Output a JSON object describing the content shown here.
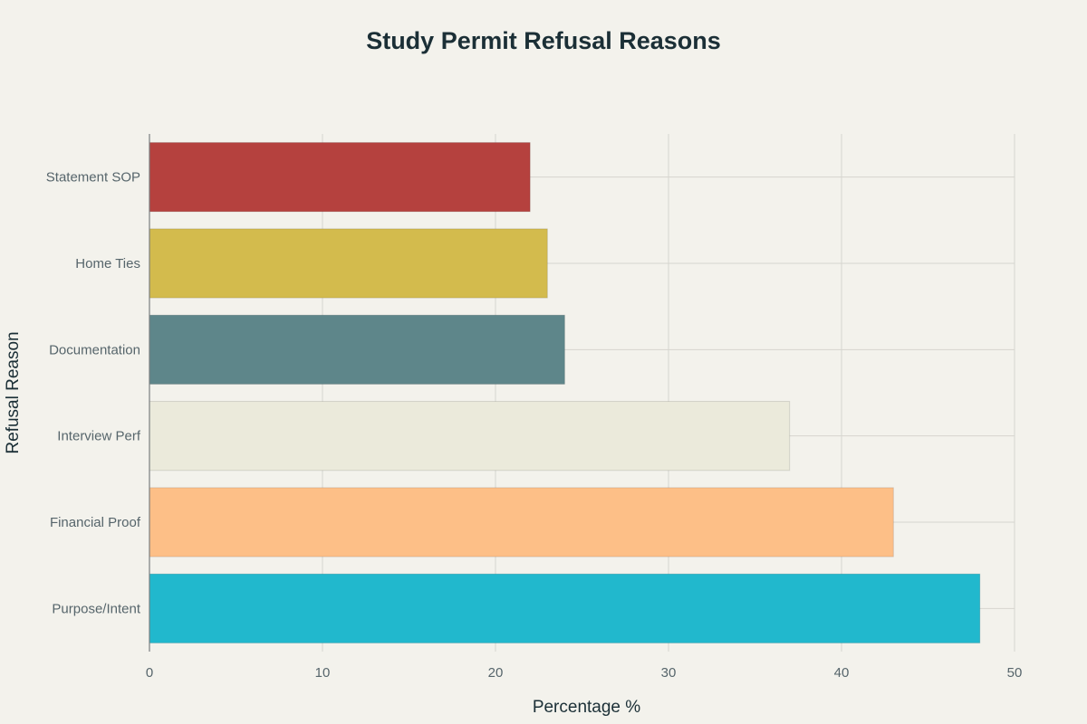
{
  "chart_data": {
    "type": "bar",
    "orientation": "horizontal",
    "title": "Study Permit Refusal Reasons",
    "xlabel": "Percentage %",
    "ylabel": "Refusal Reason",
    "xlim": [
      0,
      50
    ],
    "xticks": [
      0,
      10,
      20,
      30,
      40,
      50
    ],
    "grid": true,
    "categories": [
      "Purpose/Intent",
      "Financial Proof",
      "Interview Perf",
      "Documentation",
      "Home Ties",
      "Statement SOP"
    ],
    "values": [
      48,
      43,
      37,
      24,
      23,
      22
    ],
    "colors": [
      "#21b8cd",
      "#fdbf87",
      "#ebeadb",
      "#5e868a",
      "#d3bb4d",
      "#b5413e"
    ]
  }
}
